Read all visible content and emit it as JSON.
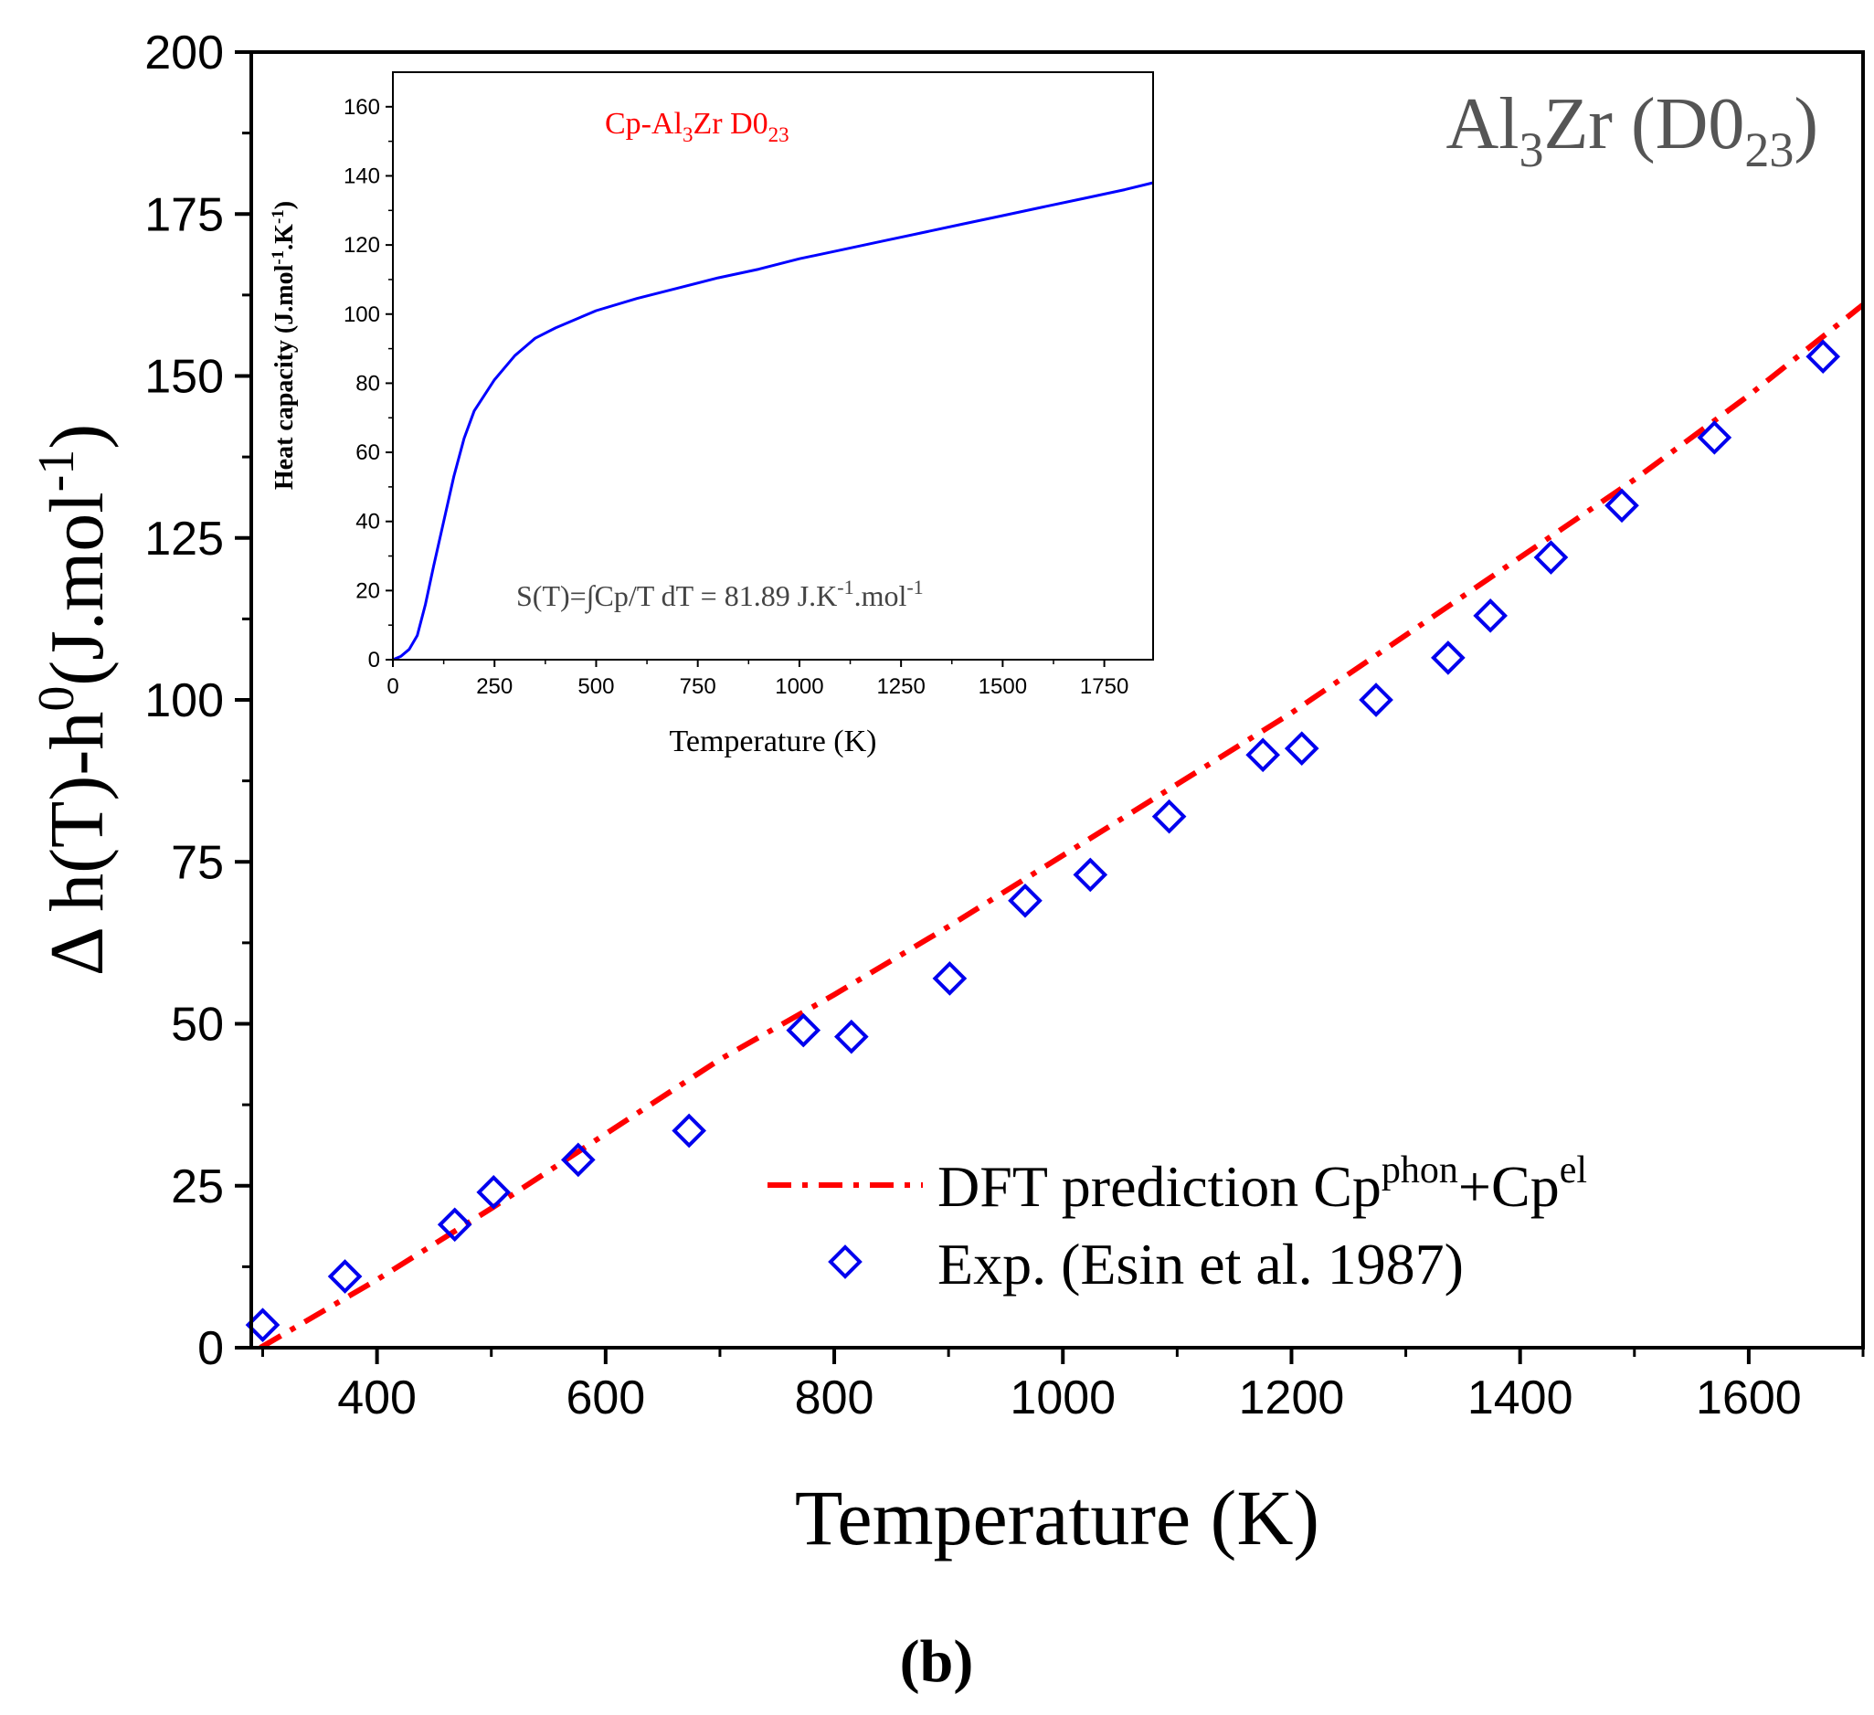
{
  "figure_label": "(b)",
  "chart_data": [
    {
      "id": "main",
      "type": "line+scatter",
      "title": "",
      "annotation": {
        "base": "Al",
        "sub1": "3",
        "mid": "Zr (D0",
        "sub2": "23",
        "end": ")"
      },
      "xlabel": "Temperature (K)",
      "ylabel": {
        "prefix": "Δ h(T)-h",
        "sup0": "0",
        "mid": "(J.mol",
        "sup1": "-1",
        "end": ")"
      },
      "xlim": [
        290,
        1700
      ],
      "ylim": [
        0,
        200
      ],
      "xticks": [
        400,
        600,
        800,
        1000,
        1200,
        1400,
        1600
      ],
      "xminor": [
        300,
        500,
        700,
        900,
        1100,
        1300,
        1500,
        1700
      ],
      "yticks": [
        0,
        25,
        50,
        75,
        100,
        125,
        150,
        175,
        200
      ],
      "grid": false,
      "legend_position": "bottom-right",
      "colors": {
        "dft": "#ff0000",
        "exp": "#0000ee"
      },
      "legend": {
        "dft_label": "DFT prediction  Cp",
        "dft_sup1": "phon",
        "dft_plus": "+Cp",
        "dft_sup2": "el",
        "exp_label": "Exp. (Esin et al. 1987)"
      },
      "series": [
        {
          "id": "dft",
          "style": "dash-dot line",
          "x": [
            298,
            400,
            500,
            600,
            700,
            800,
            900,
            1000,
            1100,
            1200,
            1300,
            1400,
            1500,
            1600,
            1700
          ],
          "y": [
            0,
            10.5,
            21.5,
            33,
            44.5,
            54.5,
            65,
            76,
            87,
            98,
            110,
            122,
            134,
            147,
            161
          ]
        },
        {
          "id": "exp",
          "style": "open diamond markers",
          "x": [
            300,
            372,
            468,
            502,
            576,
            673,
            773,
            815,
            901,
            967,
            1024,
            1093,
            1175,
            1209,
            1274,
            1337,
            1374,
            1427,
            1489,
            1570,
            1665
          ],
          "y": [
            3.5,
            11,
            19,
            24,
            29,
            33.5,
            49,
            48,
            57,
            69,
            73,
            82,
            91.5,
            92.5,
            100,
            106.5,
            113,
            122,
            130,
            140.5,
            153
          ]
        }
      ]
    },
    {
      "id": "inset",
      "type": "line",
      "title": {
        "base": "Cp-Al",
        "sub1": "3",
        "mid": "Zr D0",
        "sub2": "23"
      },
      "annotation": {
        "text": "S(T)=∫Cp/T dT = 81.89 J.K",
        "sup1": "-1",
        "mid": ".mol",
        "sup2": "-1"
      },
      "xlabel": "Temperature (K)",
      "ylabel": {
        "base": "Heat capacity (J.mol",
        "sup1": "-1",
        "mid": ".K",
        "sup2": "-1",
        "end": ")"
      },
      "xlim": [
        0,
        1870
      ],
      "ylim": [
        0,
        170
      ],
      "xticks": [
        0,
        250,
        500,
        750,
        1000,
        1250,
        1500,
        1750
      ],
      "yticks": [
        0,
        20,
        40,
        60,
        80,
        100,
        120,
        140,
        160
      ],
      "grid": false,
      "colors": {
        "line": "#0000ff"
      },
      "series": [
        {
          "name": "",
          "x": [
            0,
            20,
            40,
            60,
            80,
            100,
            125,
            150,
            175,
            200,
            250,
            300,
            350,
            400,
            500,
            600,
            700,
            800,
            900,
            1000,
            1100,
            1200,
            1300,
            1400,
            1500,
            1600,
            1700,
            1800,
            1870
          ],
          "y": [
            0,
            1,
            3,
            7,
            16,
            27,
            40,
            53,
            64,
            72,
            81,
            88,
            93,
            96,
            101,
            104.5,
            107.5,
            110.5,
            113,
            116,
            118.5,
            121,
            123.5,
            126,
            128.5,
            131,
            133.5,
            136,
            138
          ]
        }
      ]
    }
  ]
}
